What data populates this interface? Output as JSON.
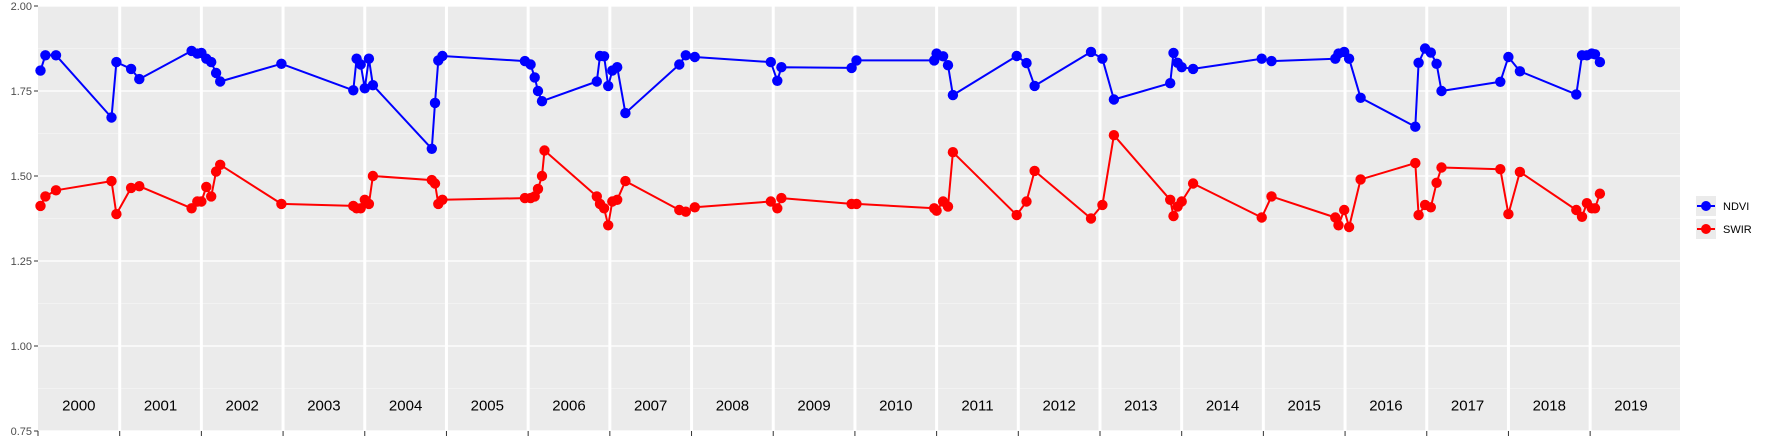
{
  "chart_data": {
    "type": "line",
    "title": "",
    "xlabel": "",
    "ylabel": "",
    "ylim": [
      0.75,
      2.0
    ],
    "y_ticks": [
      "0.75",
      "1.00",
      "1.25",
      "1.50",
      "1.75",
      "2.00"
    ],
    "y_tick_values": [
      0.75,
      1.0,
      1.25,
      1.5,
      1.75,
      2.0
    ],
    "xlim": [
      2000,
      2020.1
    ],
    "years": [
      "2000",
      "2001",
      "2002",
      "2003",
      "2004",
      "2005",
      "2006",
      "2007",
      "2008",
      "2009",
      "2010",
      "2011",
      "2012",
      "2013",
      "2014",
      "2015",
      "2016",
      "2017",
      "2018",
      "2019"
    ],
    "grid": true,
    "background": "#ebebeb",
    "legend_position": "right",
    "series": [
      {
        "name": "NDVI",
        "color": "#0000ff",
        "points": [
          [
            2000.03,
            1.81
          ],
          [
            2000.09,
            1.855
          ],
          [
            2000.22,
            1.855
          ],
          [
            2000.9,
            1.672
          ],
          [
            2000.96,
            1.835
          ],
          [
            2001.14,
            1.815
          ],
          [
            2001.24,
            1.785
          ],
          [
            2001.88,
            1.868
          ],
          [
            2001.95,
            1.86
          ],
          [
            2002.0,
            1.862
          ],
          [
            2002.06,
            1.845
          ],
          [
            2002.12,
            1.835
          ],
          [
            2002.18,
            1.803
          ],
          [
            2002.23,
            1.778
          ],
          [
            2002.98,
            1.83
          ],
          [
            2003.86,
            1.752
          ],
          [
            2003.9,
            1.845
          ],
          [
            2003.95,
            1.828
          ],
          [
            2004.0,
            1.758
          ],
          [
            2004.05,
            1.845
          ],
          [
            2004.1,
            1.767
          ],
          [
            2004.82,
            1.58
          ],
          [
            2004.86,
            1.715
          ],
          [
            2004.9,
            1.84
          ],
          [
            2004.95,
            1.853
          ],
          [
            2005.96,
            1.838
          ],
          [
            2006.03,
            1.828
          ],
          [
            2006.08,
            1.79
          ],
          [
            2006.12,
            1.75
          ],
          [
            2006.17,
            1.72
          ],
          [
            2006.84,
            1.778
          ],
          [
            2006.88,
            1.853
          ],
          [
            2006.93,
            1.852
          ],
          [
            2006.98,
            1.765
          ],
          [
            2007.03,
            1.81
          ],
          [
            2007.09,
            1.82
          ],
          [
            2007.19,
            1.685
          ],
          [
            2007.85,
            1.828
          ],
          [
            2007.93,
            1.855
          ],
          [
            2008.04,
            1.85
          ],
          [
            2008.97,
            1.835
          ],
          [
            2009.05,
            1.78
          ],
          [
            2009.1,
            1.82
          ],
          [
            2009.96,
            1.818
          ],
          [
            2010.02,
            1.84
          ],
          [
            2010.97,
            1.84
          ],
          [
            2011.0,
            1.86
          ],
          [
            2011.08,
            1.852
          ],
          [
            2011.14,
            1.826
          ],
          [
            2011.2,
            1.738
          ],
          [
            2011.98,
            1.853
          ],
          [
            2012.1,
            1.832
          ],
          [
            2012.2,
            1.765
          ],
          [
            2012.89,
            1.865
          ],
          [
            2013.03,
            1.845
          ],
          [
            2013.17,
            1.725
          ],
          [
            2013.86,
            1.773
          ],
          [
            2013.9,
            1.862
          ],
          [
            2013.95,
            1.833
          ],
          [
            2014.0,
            1.82
          ],
          [
            2014.14,
            1.815
          ],
          [
            2014.98,
            1.845
          ],
          [
            2015.1,
            1.838
          ],
          [
            2015.88,
            1.845
          ],
          [
            2015.92,
            1.86
          ],
          [
            2015.99,
            1.865
          ],
          [
            2016.05,
            1.845
          ],
          [
            2016.19,
            1.73
          ],
          [
            2016.86,
            1.645
          ],
          [
            2016.9,
            1.833
          ],
          [
            2016.98,
            1.875
          ],
          [
            2017.05,
            1.863
          ],
          [
            2017.12,
            1.83
          ],
          [
            2017.18,
            1.75
          ],
          [
            2017.9,
            1.777
          ],
          [
            2018.0,
            1.85
          ],
          [
            2018.14,
            1.808
          ],
          [
            2018.83,
            1.74
          ],
          [
            2018.9,
            1.855
          ],
          [
            2018.96,
            1.855
          ],
          [
            2019.02,
            1.86
          ],
          [
            2019.06,
            1.858
          ],
          [
            2019.12,
            1.835
          ]
        ]
      },
      {
        "name": "SWIR",
        "color": "#ff0000",
        "points": [
          [
            2000.03,
            1.412
          ],
          [
            2000.09,
            1.44
          ],
          [
            2000.22,
            1.458
          ],
          [
            2000.9,
            1.485
          ],
          [
            2000.96,
            1.388
          ],
          [
            2001.14,
            1.465
          ],
          [
            2001.24,
            1.47
          ],
          [
            2001.88,
            1.405
          ],
          [
            2001.95,
            1.425
          ],
          [
            2002.0,
            1.425
          ],
          [
            2002.06,
            1.468
          ],
          [
            2002.12,
            1.44
          ],
          [
            2002.18,
            1.513
          ],
          [
            2002.23,
            1.533
          ],
          [
            2002.98,
            1.418
          ],
          [
            2003.86,
            1.412
          ],
          [
            2003.9,
            1.405
          ],
          [
            2003.95,
            1.405
          ],
          [
            2004.0,
            1.43
          ],
          [
            2004.05,
            1.418
          ],
          [
            2004.1,
            1.5
          ],
          [
            2004.82,
            1.488
          ],
          [
            2004.86,
            1.478
          ],
          [
            2004.9,
            1.418
          ],
          [
            2004.95,
            1.43
          ],
          [
            2005.96,
            1.435
          ],
          [
            2006.03,
            1.435
          ],
          [
            2006.08,
            1.44
          ],
          [
            2006.12,
            1.462
          ],
          [
            2006.17,
            1.5
          ],
          [
            2006.2,
            1.575
          ],
          [
            2006.84,
            1.44
          ],
          [
            2006.88,
            1.418
          ],
          [
            2006.93,
            1.405
          ],
          [
            2006.98,
            1.355
          ],
          [
            2007.03,
            1.425
          ],
          [
            2007.09,
            1.43
          ],
          [
            2007.19,
            1.485
          ],
          [
            2007.85,
            1.4
          ],
          [
            2007.93,
            1.395
          ],
          [
            2008.04,
            1.408
          ],
          [
            2008.97,
            1.425
          ],
          [
            2009.05,
            1.405
          ],
          [
            2009.1,
            1.435
          ],
          [
            2009.96,
            1.418
          ],
          [
            2010.02,
            1.418
          ],
          [
            2010.97,
            1.405
          ],
          [
            2011.0,
            1.398
          ],
          [
            2011.08,
            1.425
          ],
          [
            2011.14,
            1.41
          ],
          [
            2011.2,
            1.57
          ],
          [
            2011.98,
            1.385
          ],
          [
            2012.1,
            1.425
          ],
          [
            2012.2,
            1.515
          ],
          [
            2012.89,
            1.375
          ],
          [
            2013.03,
            1.415
          ],
          [
            2013.17,
            1.62
          ],
          [
            2013.86,
            1.43
          ],
          [
            2013.9,
            1.382
          ],
          [
            2013.95,
            1.41
          ],
          [
            2014.0,
            1.425
          ],
          [
            2014.14,
            1.478
          ],
          [
            2014.98,
            1.378
          ],
          [
            2015.1,
            1.44
          ],
          [
            2015.88,
            1.378
          ],
          [
            2015.92,
            1.355
          ],
          [
            2015.99,
            1.4
          ],
          [
            2016.05,
            1.35
          ],
          [
            2016.19,
            1.49
          ],
          [
            2016.86,
            1.538
          ],
          [
            2016.9,
            1.385
          ],
          [
            2016.98,
            1.415
          ],
          [
            2017.05,
            1.408
          ],
          [
            2017.12,
            1.48
          ],
          [
            2017.18,
            1.525
          ],
          [
            2017.9,
            1.52
          ],
          [
            2018.0,
            1.388
          ],
          [
            2018.14,
            1.512
          ],
          [
            2018.83,
            1.4
          ],
          [
            2018.9,
            1.38
          ],
          [
            2018.96,
            1.42
          ],
          [
            2019.02,
            1.405
          ],
          [
            2019.06,
            1.405
          ],
          [
            2019.12,
            1.448
          ]
        ]
      }
    ]
  }
}
